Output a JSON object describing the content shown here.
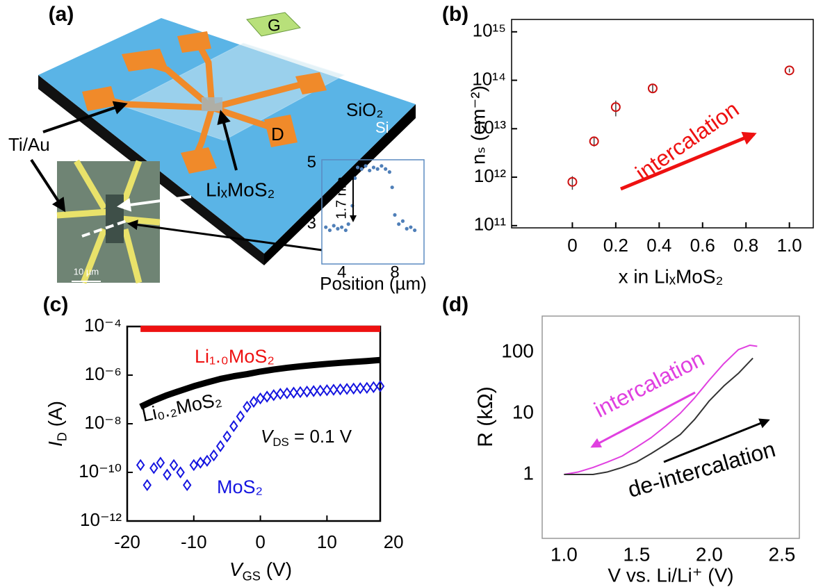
{
  "diagram": {
    "panel_label": "(a)",
    "gate": "G",
    "drain": "D",
    "oxide": "SiO₂",
    "substrate": "Si",
    "electrodes": "Ti/Au",
    "channel": "LiₓMoS₂",
    "scale_bar": "10 µm"
  },
  "chart_data": [
    {
      "type": "scatter",
      "xlabel": "Position (µm)",
      "annotation": "1.7 nm",
      "xlim": [
        2.5,
        10.2
      ],
      "ylim": [
        1.7,
        5.1
      ],
      "xticks": [
        4,
        8
      ],
      "yticks": [
        3,
        5
      ],
      "series": [
        {
          "color": "#4f7fb8",
          "x": [
            2.8,
            3.1,
            3.4,
            3.7,
            4.0,
            4.3,
            4.5,
            4.8,
            5.0,
            5.2,
            5.5,
            5.8,
            6.1,
            6.4,
            6.7,
            7.0,
            7.3,
            7.6,
            7.8,
            8.0,
            8.3,
            8.6,
            8.9,
            9.2,
            9.5
          ],
          "values": [
            2.9,
            2.8,
            2.95,
            2.85,
            2.9,
            2.8,
            3.0,
            3.6,
            4.5,
            4.85,
            4.8,
            4.9,
            4.75,
            4.85,
            4.8,
            4.9,
            4.8,
            4.7,
            4.2,
            3.3,
            3.0,
            3.1,
            2.85,
            2.9,
            2.8
          ]
        }
      ]
    },
    {
      "type": "scatter",
      "panel_label": "(b)",
      "xlabel": "x in LiₓMoS₂",
      "ylabel": "nₛ (cm⁻²)",
      "annotation": "intercalation",
      "xlim": [
        -0.28,
        1.11
      ],
      "ylim": [
        90000000000.0,
        1800000000000000.0
      ],
      "ylog": true,
      "xticks": [
        0,
        0.2,
        0.4,
        0.6,
        0.8,
        {
          "value": 1,
          "label": "1.0"
        }
      ],
      "yticks": [
        {
          "value": 100000000000.0,
          "label": "10¹¹"
        },
        {
          "value": 1000000000000.0,
          "label": "10¹²"
        },
        {
          "value": 10000000000000.0,
          "label": "10¹³"
        },
        {
          "value": 100000000000000.0,
          "label": "10¹⁴"
        },
        {
          "value": 1000000000000000.0,
          "label": "10¹⁵"
        }
      ],
      "series": [
        {
          "color": "#cc1111",
          "x": [
            0,
            0.1,
            0.2,
            0.37,
            1.0
          ],
          "values": [
            800000000000.0,
            5500000000000.0,
            28000000000000.0,
            68000000000000.0,
            160000000000000.0
          ],
          "errors": [
            250000000000.0,
            1200000000000.0,
            10000000000000.0,
            13000000000000.0,
            15000000000000.0
          ]
        }
      ]
    },
    {
      "type": "line",
      "panel_label": "(c)",
      "xlabel": [
        "V",
        "GS",
        " (V)"
      ],
      "ylabel": [
        "I",
        "D",
        " (A)"
      ],
      "annotation": [
        "V",
        "DS",
        " = 0.1 V"
      ],
      "xlim": [
        -20,
        18
      ],
      "ylim": [
        1e-12,
        0.0001
      ],
      "ylog": true,
      "xticks": [
        -20,
        -10,
        0,
        10,
        20
      ],
      "yticks": [
        {
          "value": 0.0001,
          "label": "10⁻⁴"
        },
        {
          "value": 1e-06,
          "label": "10⁻⁶"
        },
        {
          "value": 1e-08,
          "label": "10⁻⁸"
        },
        {
          "value": 1e-10,
          "label": "10⁻¹⁰"
        },
        {
          "value": 1e-12,
          "label": "10⁻¹²"
        }
      ],
      "series": [
        {
          "name": "Li₁.₀MoS₂",
          "color": "#ee1111",
          "style": "line",
          "width": 9,
          "x": [
            -18,
            18
          ],
          "values": [
            8e-05,
            8e-05
          ]
        },
        {
          "name": "Li₀.₂MoS₂",
          "color": "#000000",
          "style": "line",
          "width": 9,
          "x": [
            -18,
            -16,
            -14,
            -12,
            -10,
            -8,
            -6,
            -4,
            -2,
            0,
            2,
            4,
            6,
            8,
            10,
            12,
            14,
            16,
            18
          ],
          "values": [
            5e-08,
            9e-08,
            1.5e-07,
            2.3e-07,
            3.5e-07,
            5e-07,
            7e-07,
            9e-07,
            1.1e-06,
            1.4e-06,
            1.7e-06,
            2e-06,
            2.3e-06,
            2.6e-06,
            2.9e-06,
            3.2e-06,
            3.5e-06,
            3.8e-06,
            4.2e-06
          ]
        },
        {
          "name": "MoS₂",
          "color": "#1414e0",
          "style": "markers",
          "x": [
            -18,
            -17,
            -16,
            -15,
            -14,
            -13,
            -12,
            -11,
            -10,
            -9,
            -8,
            -7,
            -6,
            -5,
            -4,
            -3,
            -2,
            -1,
            0,
            1,
            2,
            3,
            4,
            5,
            6,
            7,
            8,
            9,
            10,
            11,
            12,
            13,
            14,
            15,
            16,
            17,
            18
          ],
          "values": [
            2e-10,
            3e-11,
            1.5e-10,
            2.5e-10,
            8e-11,
            2e-10,
            1e-10,
            3e-11,
            2e-10,
            2.5e-10,
            3e-10,
            5e-10,
            1.2e-09,
            3e-09,
            8e-09,
            2e-08,
            5e-08,
            8e-08,
            1.1e-07,
            1.3e-07,
            1.5e-07,
            1.7e-07,
            1.8e-07,
            1.9e-07,
            2e-07,
            2.1e-07,
            2.2e-07,
            2.3e-07,
            2.4e-07,
            2.5e-07,
            2.6e-07,
            2.7e-07,
            2.8e-07,
            2.9e-07,
            3e-07,
            3.2e-07,
            3.5e-07
          ]
        }
      ]
    },
    {
      "type": "line",
      "panel_label": "(d)",
      "xlabel": "V vs. Li/Li⁺ (V)",
      "ylabel": "R (kΩ)",
      "xlim": [
        0.85,
        2.62
      ],
      "ylim": [
        0.09,
        390
      ],
      "ylog": true,
      "xticks": [
        {
          "value": 1,
          "label": "1.0"
        },
        1.5,
        {
          "value": 2,
          "label": "2.0"
        },
        2.5
      ],
      "yticks": [
        1,
        10,
        100
      ],
      "series": [
        {
          "name": "intercalation",
          "color": "#e040e0",
          "style": "line",
          "width": 2,
          "x": [
            1.0,
            1.1,
            1.2,
            1.3,
            1.4,
            1.5,
            1.6,
            1.7,
            1.8,
            1.9,
            2.0,
            2.1,
            2.2,
            2.28,
            2.33
          ],
          "values": [
            1.0,
            1.1,
            1.3,
            1.6,
            2.0,
            2.8,
            4.0,
            6.2,
            10,
            18,
            35,
            65,
            110,
            130,
            125
          ]
        },
        {
          "name": "de-intercalation",
          "color": "#333333",
          "style": "line",
          "width": 2,
          "x": [
            1.0,
            1.1,
            1.2,
            1.3,
            1.4,
            1.5,
            1.6,
            1.7,
            1.8,
            1.9,
            2.0,
            2.1,
            2.2,
            2.3
          ],
          "values": [
            1.0,
            1.0,
            1.0,
            1.1,
            1.3,
            1.6,
            2.2,
            3.1,
            4.5,
            8,
            16,
            28,
            45,
            80
          ]
        }
      ]
    }
  ]
}
